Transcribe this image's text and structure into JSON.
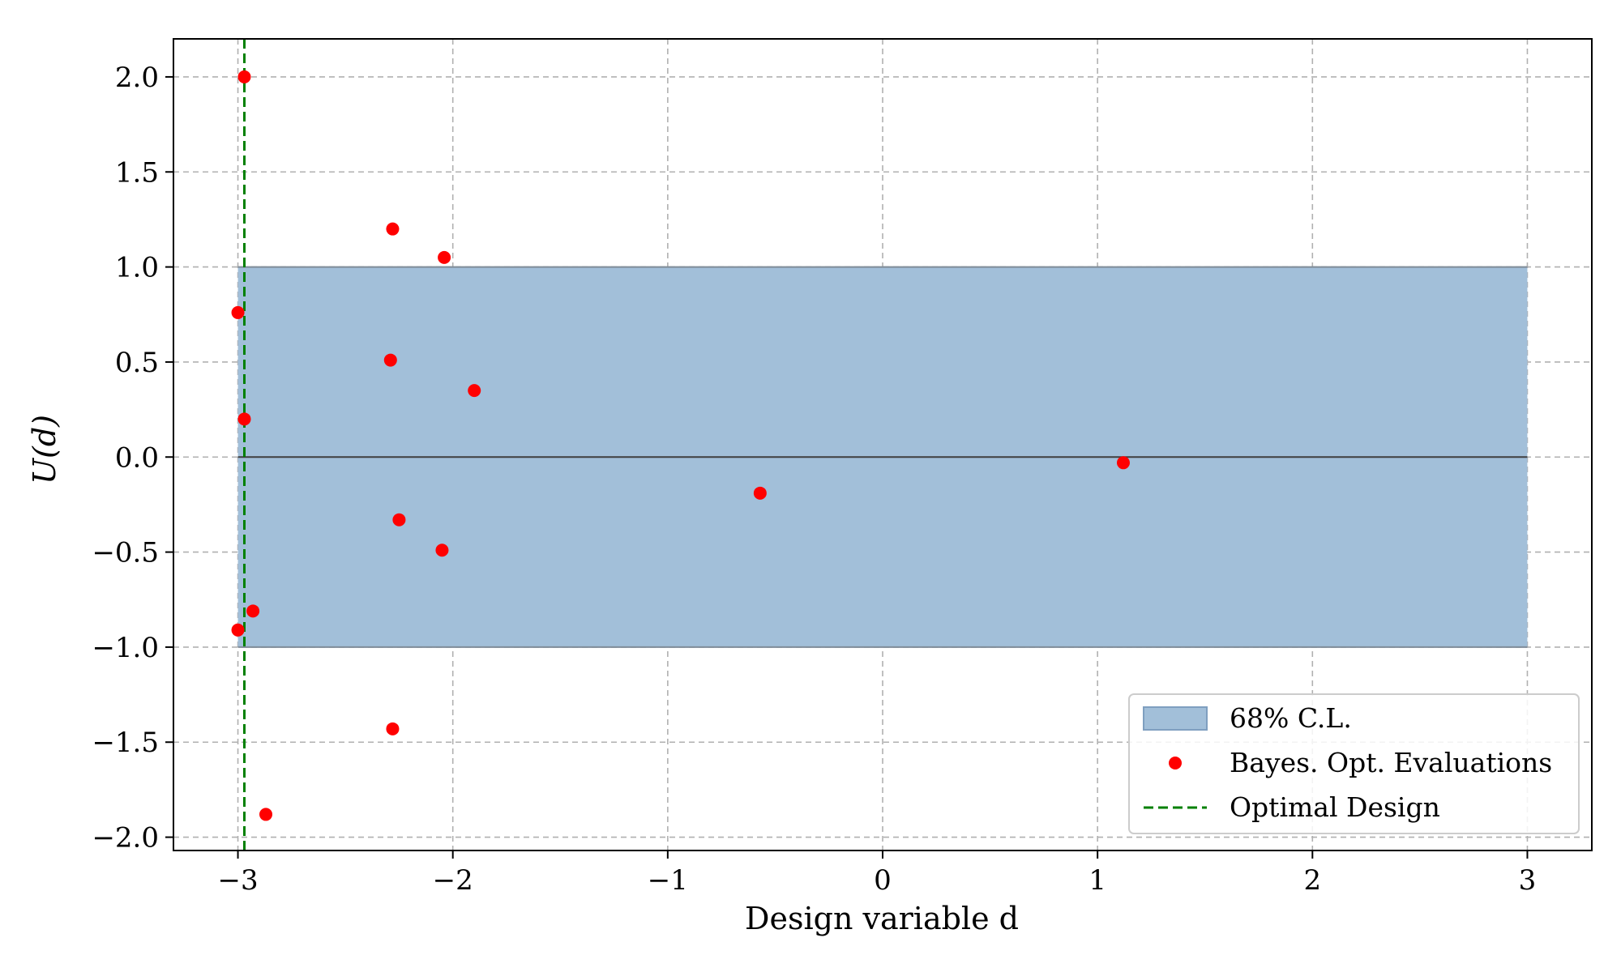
{
  "chart_data": {
    "type": "scatter",
    "title": "",
    "xlabel": "Design variable d",
    "ylabel": "U(d)",
    "xlim": [
      -3.3,
      3.3
    ],
    "ylim": [
      -2.07,
      2.2
    ],
    "grid": true,
    "legend_position": "bottom-right",
    "x_ticks": [
      {
        "value": -3,
        "label": "−3"
      },
      {
        "value": -2,
        "label": "−2"
      },
      {
        "value": -1,
        "label": "−1"
      },
      {
        "value": 0,
        "label": "0"
      },
      {
        "value": 1,
        "label": "1"
      },
      {
        "value": 2,
        "label": "2"
      },
      {
        "value": 3,
        "label": "3"
      }
    ],
    "y_ticks": [
      {
        "value": -2.0,
        "label": "−2.0"
      },
      {
        "value": -1.5,
        "label": "−1.5"
      },
      {
        "value": -1.0,
        "label": "−1.0"
      },
      {
        "value": -0.5,
        "label": "−0.5"
      },
      {
        "value": 0.0,
        "label": "0.0"
      },
      {
        "value": 0.5,
        "label": "0.5"
      },
      {
        "value": 1.0,
        "label": "1.0"
      },
      {
        "value": 1.5,
        "label": "1.5"
      },
      {
        "value": 2.0,
        "label": "2.0"
      }
    ],
    "band": {
      "name": "68% C.L.",
      "x": [
        -3.0,
        3.0
      ],
      "lower": -1.0,
      "upper": 1.0,
      "center": 0.0,
      "color": "#a2bfd9",
      "edge_color": "#7f9fc0"
    },
    "series": [
      {
        "name": "Bayes. Opt. Evaluations",
        "color": "#ff0000",
        "points": [
          [
            -2.97,
            2.0
          ],
          [
            -2.28,
            1.2
          ],
          [
            -2.04,
            1.05
          ],
          [
            -3.0,
            0.76
          ],
          [
            -2.29,
            0.51
          ],
          [
            -1.9,
            0.35
          ],
          [
            -2.97,
            0.2
          ],
          [
            1.12,
            -0.03
          ],
          [
            -0.57,
            -0.19
          ],
          [
            -2.25,
            -0.33
          ],
          [
            -2.05,
            -0.49
          ],
          [
            -2.93,
            -0.81
          ],
          [
            -3.0,
            -0.91
          ],
          [
            -2.28,
            -1.43
          ],
          [
            -2.87,
            -1.88
          ]
        ]
      }
    ],
    "vline": {
      "name": "Optimal Design",
      "x": -2.97,
      "color": "#008000"
    }
  }
}
